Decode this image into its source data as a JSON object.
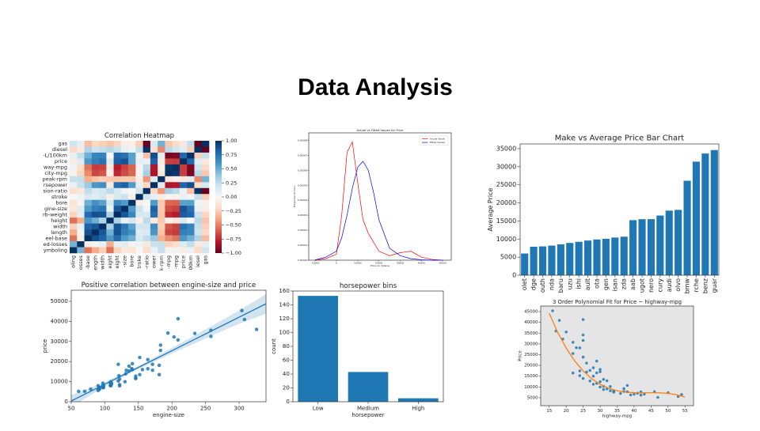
{
  "title": "Data Analysis",
  "chart_data": [
    {
      "type": "heatmap",
      "title": "Correlation Heatmap",
      "row_labels": [
        "gas",
        "diesel",
        "-L/100km",
        "price",
        "way-mpg",
        "city-mpg",
        "peak-rpm",
        "rsepower",
        "sion-ratio",
        "stroke",
        "bore",
        "gine-size",
        "rb-weight",
        "height",
        "width",
        "length",
        "eel-base",
        "ed-losses",
        "ymboling"
      ],
      "col_labels": [
        "oling",
        "osses",
        "-base",
        "ength",
        "width",
        "eight",
        "eight",
        "-size",
        "bore",
        "troke",
        "-ratio",
        "ower",
        "k-rpm",
        "-mpg",
        "-mpg",
        "price",
        "00km",
        "iesel",
        "gas"
      ],
      "values": [
        [
          0.2,
          0.1,
          -0.31,
          -0.21,
          -0.24,
          -0.28,
          -0.22,
          -0.07,
          -0.05,
          -0.24,
          -0.99,
          0.17,
          0.48,
          -0.27,
          -0.2,
          -0.11,
          0.24,
          -1,
          1
        ],
        [
          -0.2,
          -0.1,
          0.31,
          0.21,
          0.24,
          0.28,
          0.22,
          0.07,
          0.05,
          0.24,
          0.99,
          -0.17,
          -0.48,
          0.27,
          0.2,
          0.11,
          -0.24,
          1,
          -1
        ],
        [
          0.07,
          0.24,
          0.48,
          0.66,
          0.67,
          0,
          0.79,
          0.75,
          0.55,
          0.04,
          -0.3,
          0.89,
          0.12,
          -0.95,
          -0.93,
          0.79,
          1,
          -0.24,
          0.24
        ],
        [
          -0.08,
          0.13,
          0.58,
          0.69,
          0.75,
          0.14,
          0.83,
          0.87,
          0.54,
          0.08,
          0.07,
          0.81,
          -0.1,
          -0.69,
          -0.7,
          1,
          0.79,
          0.11,
          -0.11
        ],
        [
          0.04,
          -0.18,
          -0.54,
          -0.7,
          -0.68,
          -0.11,
          -0.79,
          -0.68,
          -0.59,
          -0.04,
          0.27,
          -0.8,
          -0.06,
          0.97,
          1,
          -0.7,
          -0.93,
          0.2,
          -0.2
        ],
        [
          -0.04,
          -0.23,
          -0.47,
          -0.67,
          -0.63,
          -0.05,
          -0.75,
          -0.65,
          -0.58,
          -0.03,
          0.33,
          -0.82,
          -0.12,
          1,
          0.97,
          -0.69,
          -0.95,
          0.27,
          -0.27
        ],
        [
          0.23,
          0.24,
          -0.36,
          -0.29,
          -0.25,
          -0.27,
          -0.28,
          -0.26,
          -0.27,
          -0.07,
          -0.44,
          0.13,
          1,
          -0.12,
          -0.06,
          -0.1,
          0.12,
          -0.48,
          0.48
        ],
        [
          0.07,
          0.22,
          0.37,
          0.58,
          0.62,
          -0.09,
          0.76,
          0.82,
          0.57,
          0.1,
          -0.21,
          1,
          0.13,
          -0.82,
          -0.8,
          0.81,
          0.89,
          -0.17,
          0.17
        ],
        [
          -0.18,
          -0.11,
          0.25,
          0.16,
          0.19,
          0.26,
          0.16,
          0.03,
          0,
          0.19,
          1,
          -0.21,
          -0.44,
          0.33,
          0.27,
          0.07,
          -0.3,
          0.99,
          -0.99
        ],
        [
          -0.01,
          0.06,
          0.16,
          0.12,
          0.19,
          -0.06,
          0.17,
          0.21,
          -0.06,
          1,
          0.19,
          0.1,
          -0.07,
          -0.03,
          -0.04,
          0.08,
          0.04,
          0.24,
          -0.24
        ],
        [
          -0.14,
          -0.03,
          0.49,
          0.61,
          0.54,
          0.17,
          0.65,
          0.57,
          1,
          -0.06,
          0,
          0.57,
          -0.27,
          -0.58,
          -0.59,
          0.54,
          0.55,
          0.05,
          -0.05
        ],
        [
          -0.11,
          0.11,
          0.57,
          0.69,
          0.73,
          0.07,
          0.85,
          1,
          0.57,
          0.21,
          0.03,
          0.82,
          -0.26,
          -0.65,
          -0.68,
          0.87,
          0.75,
          0.07,
          -0.07
        ],
        [
          -0.23,
          0.1,
          0.78,
          0.88,
          0.87,
          0.31,
          1,
          0.85,
          0.65,
          0.17,
          0.16,
          0.76,
          -0.28,
          -0.75,
          -0.79,
          0.83,
          0.79,
          0.22,
          -0.22
        ],
        [
          -0.55,
          -0.37,
          0.59,
          0.49,
          0.31,
          1,
          0.31,
          0.07,
          0.17,
          -0.06,
          0.26,
          -0.09,
          -0.27,
          -0.05,
          -0.11,
          0.14,
          0,
          0.28,
          -0.28
        ],
        [
          -0.24,
          0.09,
          0.81,
          0.86,
          1,
          0.31,
          0.87,
          0.73,
          0.54,
          0.19,
          0.19,
          0.62,
          -0.25,
          -0.63,
          -0.68,
          0.75,
          0.67,
          0.24,
          -0.24
        ],
        [
          -0.37,
          0.02,
          0.88,
          1,
          0.86,
          0.49,
          0.88,
          0.69,
          0.61,
          0.12,
          0.16,
          0.58,
          -0.29,
          -0.67,
          -0.7,
          0.69,
          0.66,
          0.21,
          -0.21
        ],
        [
          -0.54,
          -0.06,
          1,
          0.88,
          0.81,
          0.59,
          0.78,
          0.57,
          0.49,
          0.16,
          0.25,
          0.37,
          -0.36,
          -0.47,
          -0.54,
          0.58,
          0.48,
          0.31,
          -0.31
        ],
        [
          0.47,
          1,
          -0.06,
          0.02,
          0.09,
          -0.37,
          0.1,
          0.11,
          -0.03,
          0.06,
          -0.11,
          0.22,
          0.24,
          -0.23,
          -0.18,
          0.13,
          0.24,
          -0.1,
          0.1
        ],
        [
          1,
          0.47,
          -0.54,
          -0.37,
          -0.24,
          -0.55,
          -0.23,
          -0.11,
          -0.14,
          -0.01,
          -0.18,
          0.07,
          0.23,
          -0.04,
          0.04,
          -0.08,
          0.07,
          -0.2,
          0.2
        ]
      ],
      "clim": [
        -1,
        1
      ],
      "cticks": [
        {
          "value": 1,
          "label": "1.00"
        },
        {
          "value": 0.75,
          "label": "0.75"
        },
        {
          "value": 0.5,
          "label": "0.50"
        },
        {
          "value": 0.25,
          "label": "0.25"
        },
        {
          "value": 0,
          "label": "0.00"
        },
        {
          "value": -0.25,
          "label": "−0.25"
        },
        {
          "value": -0.5,
          "label": "−0.50"
        },
        {
          "value": -0.75,
          "label": "−0.75"
        },
        {
          "value": -1,
          "label": "−1.00"
        }
      ],
      "colormap": [
        "#67001f",
        "#b2182b",
        "#d6604d",
        "#f4a582",
        "#fddbc7",
        "#f7f7f7",
        "#d1e5f0",
        "#92c5de",
        "#4393c3",
        "#2166ac",
        "#053061"
      ]
    },
    {
      "type": "line",
      "title": "Actual vs Fitted Values for Price",
      "xlabel": "Price (in dollars)",
      "ylabel": "Proportion of Cars",
      "x": [
        -10000,
        -5000,
        0,
        2500,
        5000,
        7500,
        10000,
        12500,
        15000,
        17500,
        20000,
        25000,
        30000,
        35000,
        40000,
        45000,
        50000
      ],
      "series": [
        {
          "name": "Actual Value",
          "color": "#ff0000",
          "values": [
            0,
            1e-06,
            4e-06,
            3e-05,
            7.2e-05,
            7.9e-05,
            5.2e-05,
            2.7e-05,
            1.8e-05,
            1.2e-05,
            6e-06,
            3e-06,
            5e-06,
            6e-06,
            2e-06,
            5e-07,
            0
          ]
        },
        {
          "name": "Fitted Values",
          "color": "#0000ff",
          "values": [
            2e-07,
            2e-06,
            6e-06,
            1.5e-05,
            3e-05,
            4.8e-05,
            6.2e-05,
            6.6e-05,
            6e-05,
            4.5e-05,
            2.7e-05,
            8e-06,
            3e-06,
            1e-06,
            3e-07,
            0,
            0
          ]
        }
      ],
      "xlim": [
        -13000,
        54000
      ],
      "ylim": [
        0,
        8.5e-05
      ],
      "xticks": [
        -10000,
        0,
        10000,
        20000,
        30000,
        40000,
        50000
      ],
      "yticks": [
        {
          "value": 0,
          "label": "0.00000"
        },
        {
          "value": 1e-05,
          "label": "0.00001"
        },
        {
          "value": 2e-05,
          "label": "0.00002"
        },
        {
          "value": 3e-05,
          "label": "0.00003"
        },
        {
          "value": 4e-05,
          "label": "0.00004"
        },
        {
          "value": 5e-05,
          "label": "0.00005"
        },
        {
          "value": 6e-05,
          "label": "0.00006"
        },
        {
          "value": 7e-05,
          "label": "0.00007"
        },
        {
          "value": 8e-05,
          "label": "0.00008"
        }
      ],
      "legend": "upper right"
    },
    {
      "type": "bar",
      "title": "Make vs Average Price Bar Chart",
      "ylabel": "Average Price",
      "categories": [
        "olet",
        "dge",
        "outh",
        "nda",
        "baru",
        "uzu",
        "ishi",
        "ault",
        "ota",
        "gen",
        "isan",
        "zda",
        "aab",
        "ugot",
        "nero",
        "cury",
        "audi",
        "olvo",
        "bmw",
        "rche",
        "benz",
        "guar"
      ],
      "values": [
        6007,
        7875,
        7963,
        8185,
        8541,
        8916,
        9240,
        9595,
        9886,
        10078,
        10416,
        10652,
        15223,
        15489,
        15499,
        16503,
        17859,
        18063,
        26119,
        31400,
        33647,
        34600
      ],
      "color": "#1f77b4",
      "ylim": [
        0,
        36300
      ],
      "yticks": [
        0,
        5000,
        10000,
        15000,
        20000,
        25000,
        30000,
        35000
      ]
    },
    {
      "type": "scatter",
      "title": "Positive correlation between engine-size and price",
      "xlabel": "engine-size",
      "ylabel": "price",
      "x": [
        61,
        70,
        79,
        90,
        90,
        92,
        92,
        97,
        98,
        98,
        108,
        108,
        109,
        110,
        120,
        121,
        122,
        122,
        130,
        131,
        136,
        136,
        140,
        141,
        146,
        152,
        156,
        164,
        171,
        181,
        183,
        194,
        203,
        209,
        234,
        258,
        304,
        308,
        326,
        181,
        146,
        109,
        97,
        92,
        98,
        152,
        164,
        171,
        120,
        132,
        110,
        141,
        183,
        209,
        258,
        90,
        97,
        122,
        146
      ],
      "values": [
        5151,
        5195,
        6295,
        5572,
        6377,
        6229,
        7099,
        7799,
        6989,
        8249,
        8058,
        9495,
        7975,
        8845,
        10295,
        12945,
        7898,
        8495,
        9960,
        13860,
        15250,
        17710,
        16500,
        15985,
        11549,
        13499,
        15998,
        16430,
        15690,
        13499,
        25552,
        34184,
        32250,
        30760,
        34028,
        32528,
        45400,
        40960,
        36000,
        18150,
        12764,
        9980,
        7126,
        6669,
        7609,
        22018,
        20970,
        18620,
        18620,
        15645,
        9095,
        18950,
        28176,
        41315,
        35550,
        7957,
        9233,
        11245,
        11694
      ],
      "color": "#1f77b4",
      "fit": {
        "x": [
          50,
          100,
          150,
          200,
          250,
          300,
          340
        ],
        "values": [
          380,
          8723,
          17066,
          25409,
          33752,
          42095,
          48769
        ],
        "lower": [
          -2600,
          7600,
          16300,
          24000,
          31500,
          38800,
          43800
        ],
        "upper": [
          3300,
          9800,
          17800,
          26800,
          36000,
          45400,
          53600
        ],
        "color": "#1f77b4"
      },
      "xlim": [
        50,
        340
      ],
      "ylim": [
        0,
        55500
      ],
      "xticks": [
        50,
        100,
        150,
        200,
        250,
        300
      ],
      "yticks": [
        0,
        10000,
        20000,
        30000,
        40000,
        50000
      ]
    },
    {
      "type": "bar",
      "title": "horsepower bins",
      "xlabel": "horsepower",
      "ylabel": "count",
      "categories": [
        "Low",
        "Medium",
        "High"
      ],
      "values": [
        153,
        43,
        5
      ],
      "color": "#1f77b4",
      "ylim": [
        0,
        160
      ],
      "yticks": [
        0,
        20,
        40,
        60,
        80,
        100,
        120,
        140,
        160
      ]
    },
    {
      "type": "scatter",
      "title": "3 Order Polynomial Fit for Price ~ highway-mpg",
      "xlabel": "highway-mpg",
      "ylabel": "Price",
      "x": [
        16,
        17,
        18,
        19,
        20,
        22,
        22,
        24,
        25,
        25,
        24,
        25,
        26,
        27,
        28,
        28,
        29,
        30,
        30,
        31,
        32,
        33,
        34,
        30,
        29,
        31,
        32,
        33,
        34,
        36,
        37,
        38,
        38,
        39,
        41,
        42,
        43,
        46,
        47,
        50,
        53,
        54,
        25,
        28,
        24,
        26,
        22,
        27,
        34,
        37,
        31,
        30,
        25,
        23,
        29,
        40,
        42
      ],
      "values": [
        45400,
        36000,
        40960,
        32250,
        35550,
        30760,
        16500,
        17450,
        34184,
        23875,
        15250,
        13950,
        16925,
        17710,
        18920,
        11245,
        16558,
        9960,
        12440,
        8845,
        9095,
        8249,
        7957,
        18150,
        22018,
        10295,
        12940,
        10198,
        8058,
        6989,
        7898,
        7775,
        10698,
        6295,
        7099,
        6229,
        6669,
        7799,
        5151,
        7295,
        5572,
        6479,
        31600,
        15040,
        28176,
        21105,
        25552,
        12764,
        7609,
        9233,
        13499,
        17075,
        41315,
        28248,
        11694,
        6649,
        7738
      ],
      "color": "#1f77b4",
      "fit": {
        "x": [
          15,
          17.5,
          20,
          22.5,
          25,
          27.5,
          30,
          32.5,
          35,
          37.5,
          40,
          42.5,
          45,
          47.5,
          50,
          52.5,
          55
        ],
        "values": [
          44250,
          35388,
          28064,
          22131,
          17447,
          13861,
          11231,
          9408,
          8248,
          7605,
          7332,
          7283,
          7315,
          7275,
          7025,
          6414,
          5297
        ],
        "color": "#ff7f0e"
      },
      "background": "#e5e5e5",
      "xlim": [
        12.5,
        57.5
      ],
      "ylim": [
        1300,
        47600
      ],
      "xticks": [
        15,
        20,
        25,
        30,
        35,
        40,
        45,
        50,
        55
      ],
      "yticks": [
        5000,
        10000,
        15000,
        20000,
        25000,
        30000,
        35000,
        40000,
        45000
      ]
    }
  ]
}
